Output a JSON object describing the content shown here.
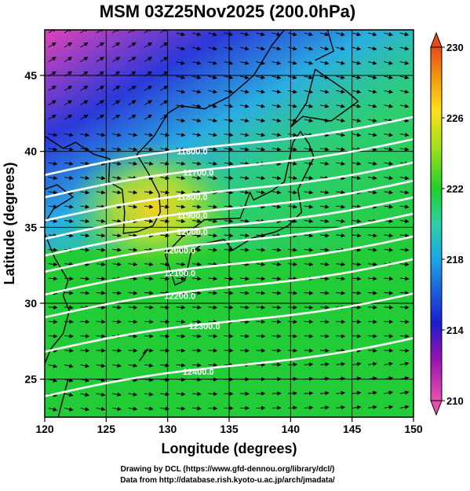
{
  "title": "MSM 03Z25Nov2025 (200.0hPa)",
  "credits": {
    "line1": "Drawing by DCL (https://www.gfd-dennou.org/library/dcl/)",
    "line2": "Data from http://database.rish.kyoto-u.ac.jp/arch/jmadata/"
  },
  "map": {
    "x_label": "Longitude (degrees)",
    "y_label": "Latitude  (degrees)",
    "lon_range": [
      120,
      150
    ],
    "lat_range": [
      22.5,
      48
    ],
    "lon_ticks": [
      120,
      125,
      130,
      135,
      140,
      145,
      150
    ],
    "lon_tick_labels": [
      "120",
      "125",
      "130",
      "135",
      "140",
      "145",
      "150"
    ],
    "lat_ticks": [
      25,
      30,
      35,
      40,
      45
    ],
    "lat_tick_labels": [
      "25",
      "30",
      "35",
      "40",
      "45"
    ],
    "grid": true,
    "vectors": "wind arrows (streamline style)",
    "contours": [
      {
        "label": "11600.0",
        "value": 11600,
        "label_lon": 132.0,
        "label_lat": 40.0
      },
      {
        "label": "11700.0",
        "value": 11700,
        "label_lon": 132.5,
        "label_lat": 38.6
      },
      {
        "label": "11800.0",
        "value": 11800,
        "label_lon": 132.0,
        "label_lat": 37.0
      },
      {
        "label": "11900.0",
        "value": 11900,
        "label_lon": 132.0,
        "label_lat": 35.8
      },
      {
        "label": "12000.0",
        "value": 12000,
        "label_lon": 132.0,
        "label_lat": 34.7
      },
      {
        "label": "12000.0",
        "value": 12000,
        "label_lon": 131.0,
        "label_lat": 33.5
      },
      {
        "label": "12100.0",
        "value": 12100,
        "label_lon": 131.0,
        "label_lat": 32.0
      },
      {
        "label": "12200.0",
        "value": 12200,
        "label_lon": 131.0,
        "label_lat": 30.5
      },
      {
        "label": "12300.0",
        "value": 12300,
        "label_lon": 133.0,
        "label_lat": 28.5
      },
      {
        "label": "12400.0",
        "value": 12400,
        "label_lon": 132.5,
        "label_lat": 25.5
      }
    ]
  },
  "colorbar": {
    "min": 210,
    "max": 230,
    "tick_labels": [
      "210",
      "214",
      "218",
      "222",
      "226",
      "230"
    ],
    "tick_values": [
      210,
      214,
      218,
      222,
      226,
      230
    ],
    "colors": [
      "#e84fb0",
      "#7d12b6",
      "#1c1ccf",
      "#1aa6e6",
      "#2fd1a4",
      "#1ed02a",
      "#a5e11a",
      "#ffe01a",
      "#f5a20f",
      "#e84a1a"
    ]
  }
}
